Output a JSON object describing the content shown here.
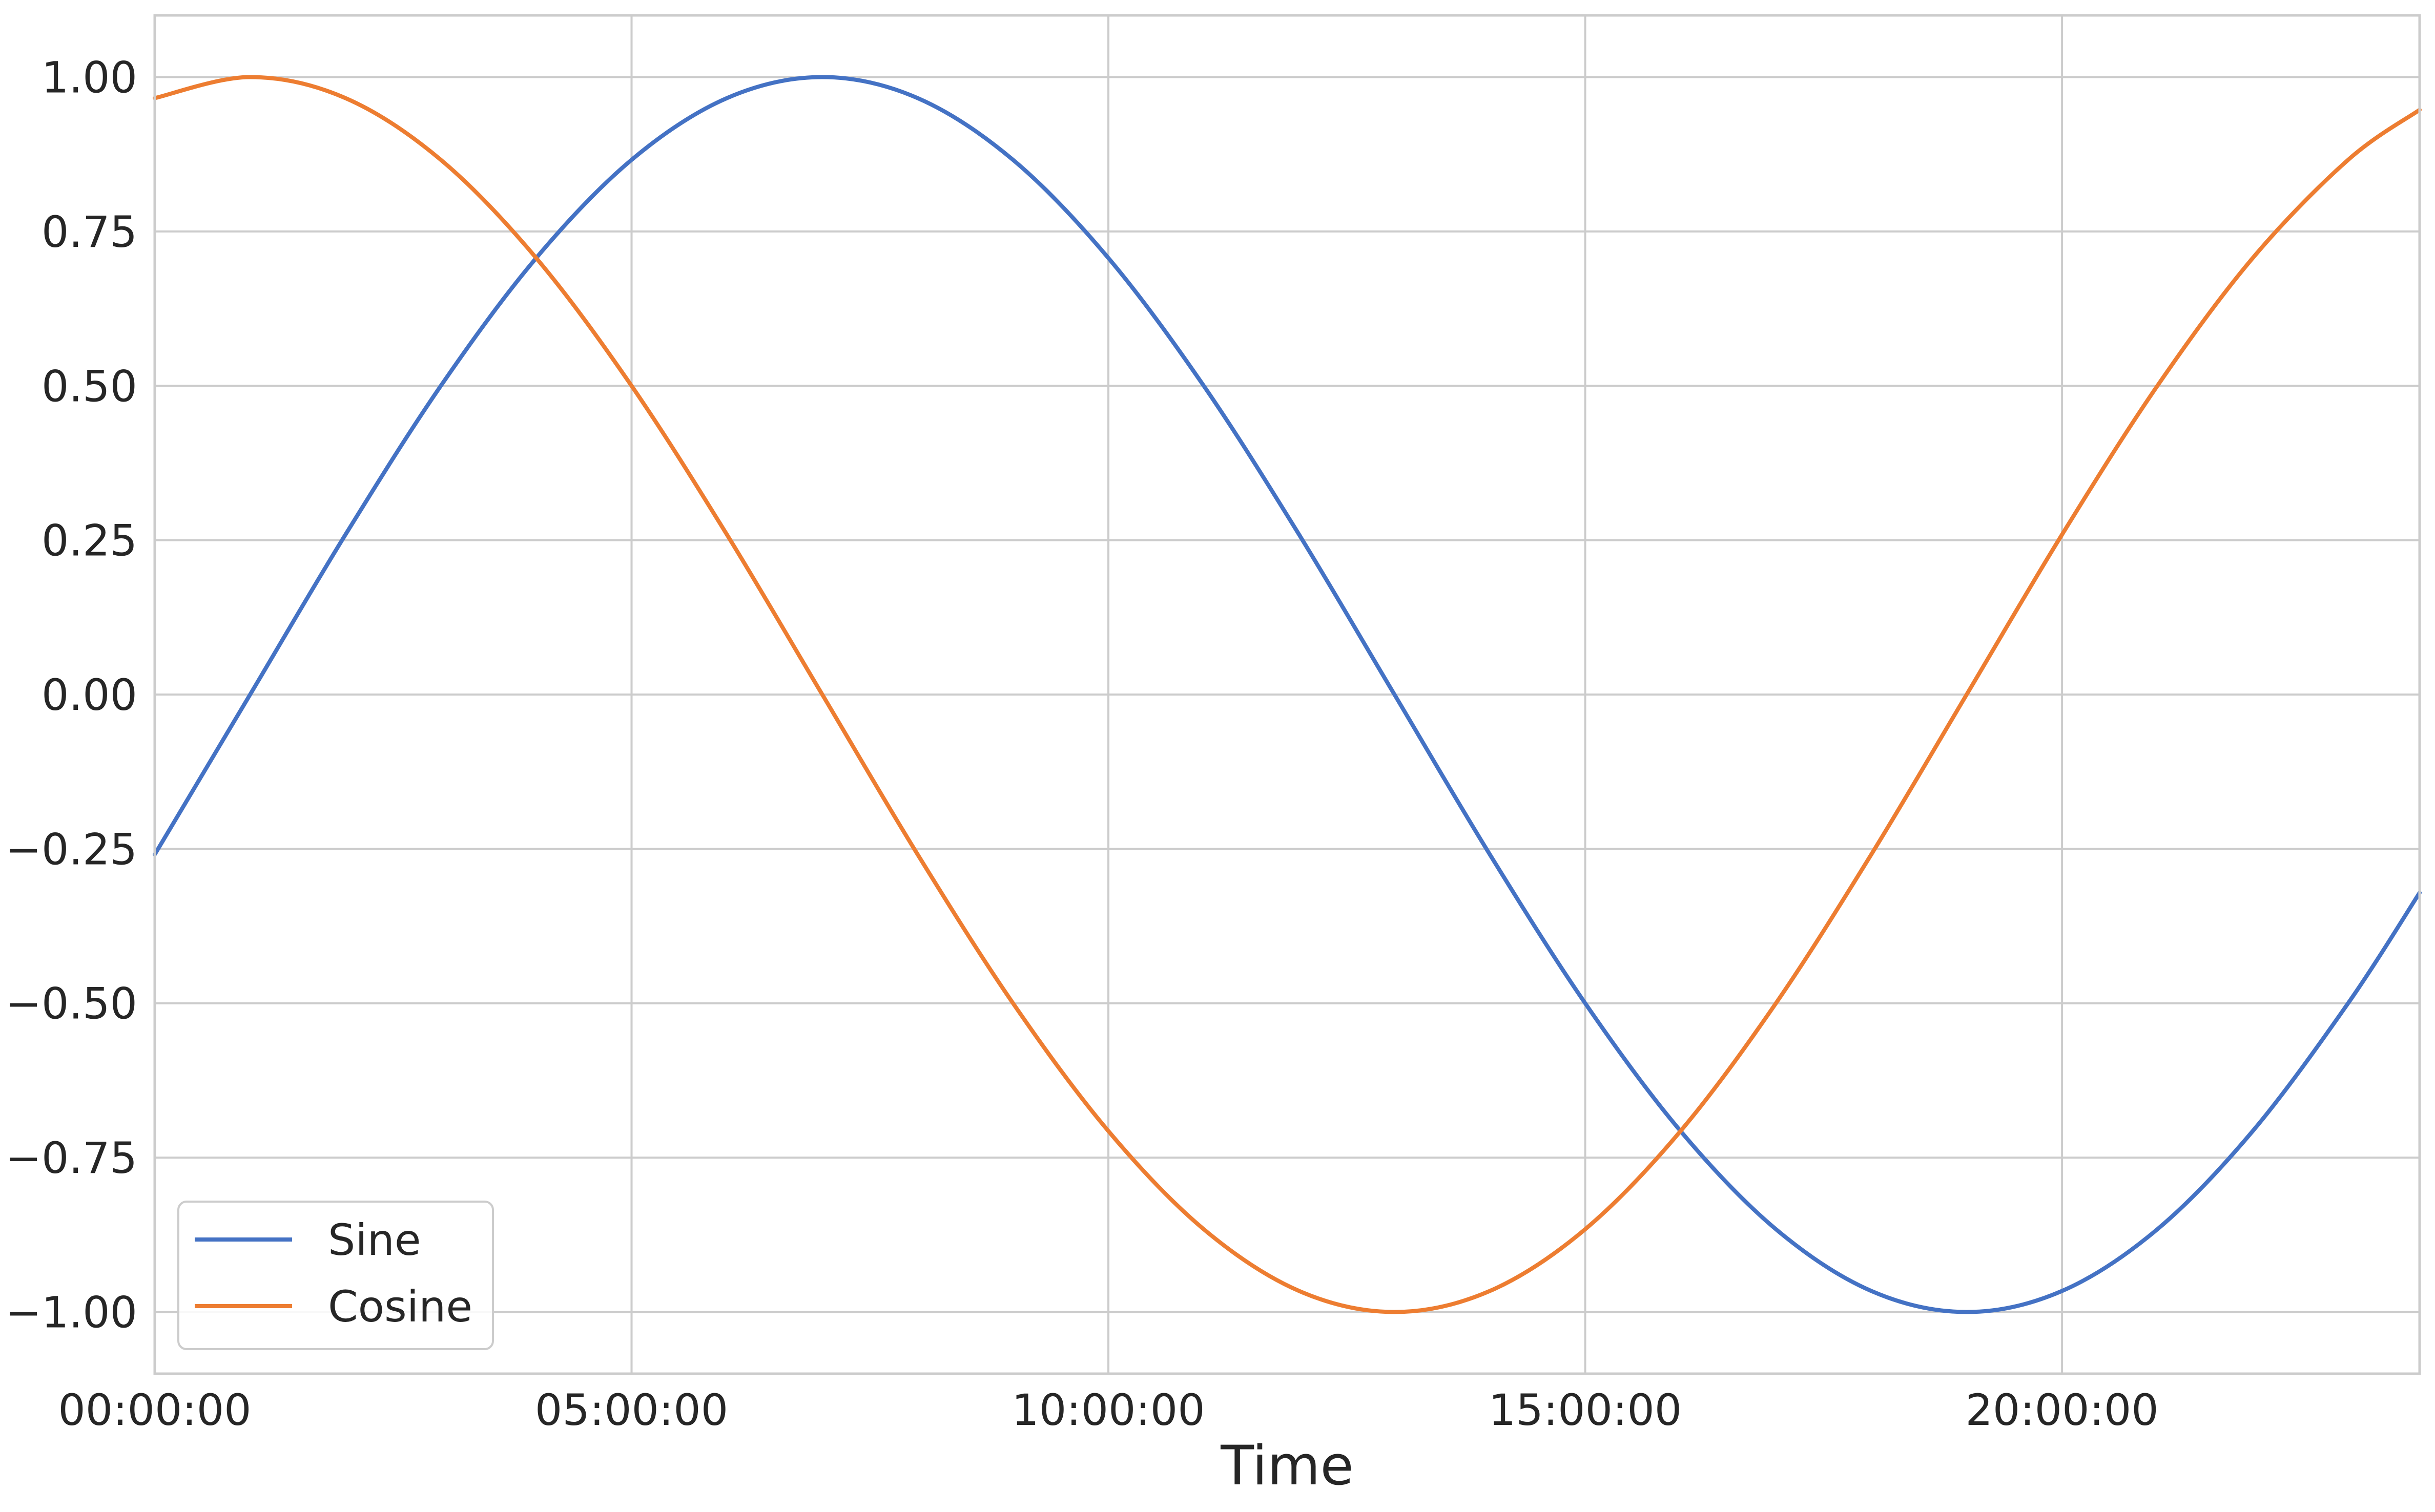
{
  "chart_data": {
    "type": "line",
    "xlabel": "Time",
    "ylabel": "",
    "x_range_hours": [
      0,
      23.75
    ],
    "ylim": [
      -1.1,
      1.1
    ],
    "x_ticks": [
      {
        "hour": 0,
        "label": "00:00:00"
      },
      {
        "hour": 5,
        "label": "05:00:00"
      },
      {
        "hour": 10,
        "label": "10:00:00"
      },
      {
        "hour": 15,
        "label": "15:00:00"
      },
      {
        "hour": 20,
        "label": "20:00:00"
      }
    ],
    "y_ticks": [
      {
        "value": 1.0,
        "label": "1.00"
      },
      {
        "value": 0.75,
        "label": "0.75"
      },
      {
        "value": 0.5,
        "label": "0.50"
      },
      {
        "value": 0.25,
        "label": "0.25"
      },
      {
        "value": 0.0,
        "label": "0.00"
      },
      {
        "value": -0.25,
        "label": "−0.25"
      },
      {
        "value": -0.5,
        "label": "−0.50"
      },
      {
        "value": -0.75,
        "label": "−0.75"
      },
      {
        "value": -1.0,
        "label": "−1.00"
      }
    ],
    "grid": true,
    "legend_position": "lower-left",
    "x": [
      "00:00:00",
      "01:00:00",
      "02:00:00",
      "03:00:00",
      "04:00:00",
      "05:00:00",
      "06:00:00",
      "07:00:00",
      "08:00:00",
      "09:00:00",
      "10:00:00",
      "11:00:00",
      "12:00:00",
      "13:00:00",
      "14:00:00",
      "15:00:00",
      "16:00:00",
      "17:00:00",
      "18:00:00",
      "19:00:00",
      "20:00:00",
      "21:00:00",
      "22:00:00",
      "23:00:00",
      "23:45:00"
    ],
    "series": [
      {
        "name": "Sine",
        "color": "#4472c4",
        "values": [
          -0.259,
          0.0,
          0.259,
          0.5,
          0.707,
          0.866,
          0.966,
          1.0,
          0.966,
          0.866,
          0.707,
          0.5,
          0.259,
          0.0,
          -0.259,
          -0.5,
          -0.707,
          -0.866,
          -0.966,
          -1.0,
          -0.966,
          -0.866,
          -0.707,
          -0.5,
          -0.321
        ]
      },
      {
        "name": "Cosine",
        "color": "#ed7d31",
        "values": [
          0.966,
          1.0,
          0.966,
          0.866,
          0.707,
          0.5,
          0.259,
          0.0,
          -0.259,
          -0.5,
          -0.707,
          -0.866,
          -0.966,
          -1.0,
          -0.966,
          -0.866,
          -0.707,
          -0.5,
          -0.259,
          0.0,
          0.259,
          0.5,
          0.707,
          0.866,
          0.947
        ]
      }
    ]
  }
}
